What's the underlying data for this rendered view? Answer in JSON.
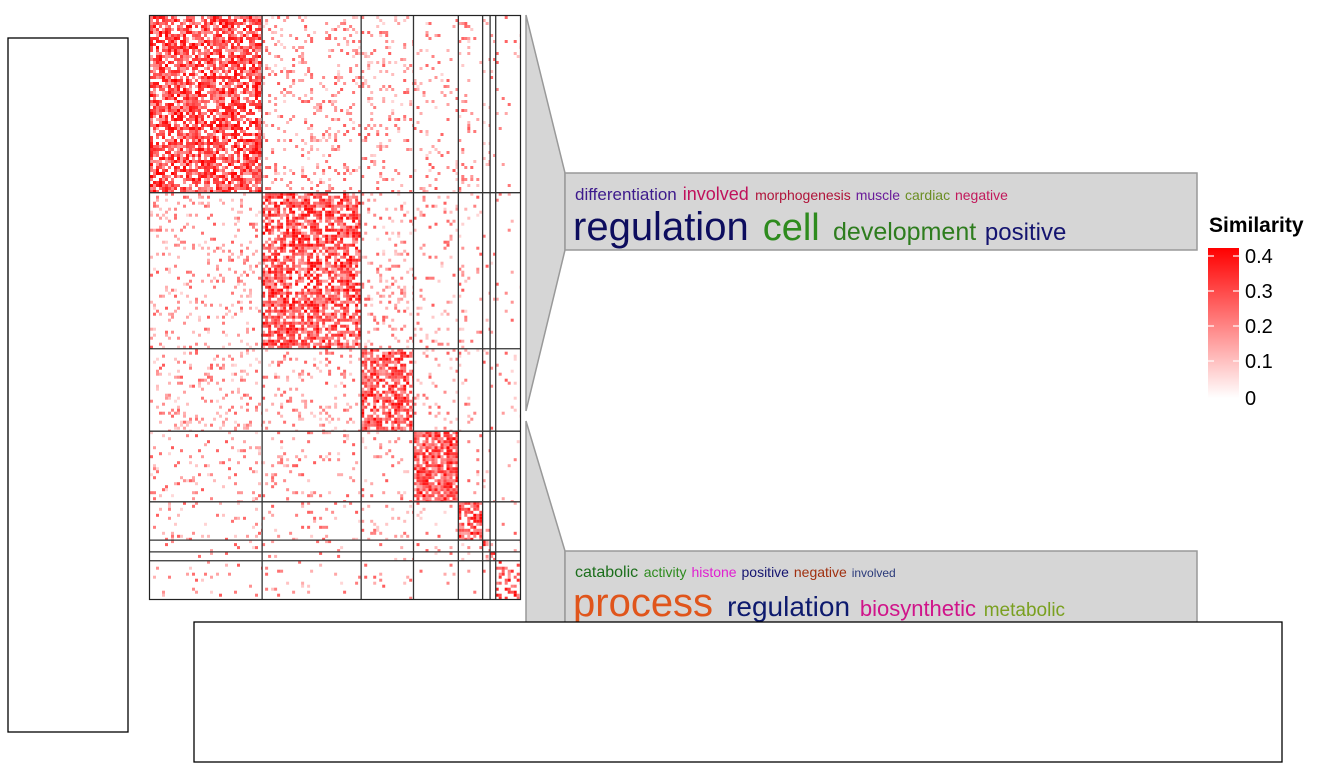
{
  "chart_data": {
    "type": "heatmap",
    "description_of_encoding": "Semantic similarity matrix of GO terms, clustered into blocks; word clouds annotate two selected clusters.",
    "color_scale": {
      "name": "Similarity",
      "min": 0,
      "max": 0.4,
      "low_color": "#ffffff",
      "high_color": "#ff0000"
    },
    "legend": {
      "title": "Similarity",
      "ticks": [
        "0.4",
        "0.3",
        "0.2",
        "0.1",
        "0"
      ]
    },
    "clusters": [
      {
        "id": 1,
        "fraction": 0.3,
        "density": 0.75
      },
      {
        "id": 2,
        "fraction": 0.265,
        "density": 0.7
      },
      {
        "id": 3,
        "fraction": 0.14,
        "density": 0.7
      },
      {
        "id": 4,
        "fraction": 0.12,
        "density": 0.85
      },
      {
        "id": 5,
        "fraction": 0.065,
        "density": 0.7
      },
      {
        "id": 6,
        "fraction": 0.02,
        "density": 0.45
      },
      {
        "id": 7,
        "fraction": 0.015,
        "density": 0.4
      },
      {
        "id": 8,
        "fraction": 0.065,
        "density": 0.25
      }
    ],
    "word_clouds": [
      {
        "cluster": 2,
        "line1": [
          {
            "word": "differentiation",
            "color": "#3d1a8c"
          },
          {
            "word": "involved",
            "color": "#c0125c"
          },
          {
            "word": "morphogenesis",
            "color": "#b0143a"
          },
          {
            "word": "muscle",
            "color": "#6a1b9a"
          },
          {
            "word": "cardiac",
            "color": "#6b8e23"
          },
          {
            "word": "negative",
            "color": "#c2185b"
          }
        ],
        "line2": [
          {
            "word": "regulation",
            "color": "#0d0d5e"
          },
          {
            "word": "cell",
            "color": "#2e8b1e"
          },
          {
            "word": "development",
            "color": "#2e7d1e"
          },
          {
            "word": "positive",
            "color": "#141470"
          }
        ]
      },
      {
        "cluster": 5,
        "line1": [
          {
            "word": "catabolic",
            "color": "#1b6e1b"
          },
          {
            "word": "activity",
            "color": "#2e8b1e"
          },
          {
            "word": "histone",
            "color": "#e020d0"
          },
          {
            "word": "positive",
            "color": "#141470"
          },
          {
            "word": "negative",
            "color": "#a0300f"
          },
          {
            "word": "involved",
            "color": "#2a3a7a"
          }
        ],
        "line2": [
          {
            "word": "process",
            "color": "#e0551b"
          },
          {
            "word": "regulation",
            "color": "#0d1a6e"
          },
          {
            "word": "biosynthetic",
            "color": "#d0148a"
          },
          {
            "word": "metabolic",
            "color": "#7aa020"
          }
        ]
      }
    ]
  }
}
